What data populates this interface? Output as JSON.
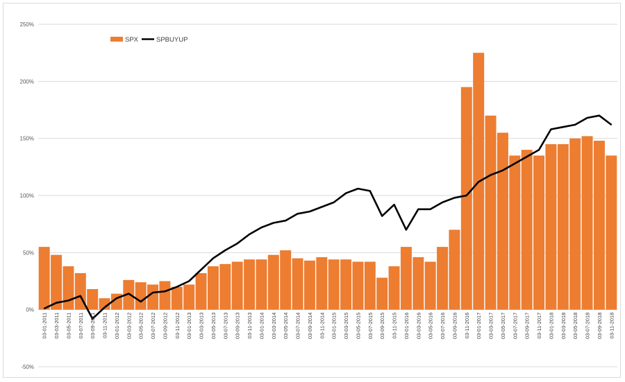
{
  "chart_data": {
    "type": "bar+line",
    "title": "",
    "xlabel": "",
    "ylabel": "",
    "ylim": [
      -0.5,
      2.5
    ],
    "y_tick_step": 0.5,
    "y_tick_labels": [
      "-50%",
      "0%",
      "50%",
      "100%",
      "150%",
      "200%",
      "250%"
    ],
    "grid": "horizontal",
    "legend": {
      "position": "top-left"
    },
    "colors": {
      "SPX": "#ed7d31",
      "SPBUYUP": "#000000"
    },
    "x_tick_labels": [
      "03-01-2011",
      "03-03-2011",
      "03-05-2011",
      "03-07-2011",
      "03-09-2011",
      "03-11-2011",
      "03-01-2012",
      "03-03-2012",
      "03-05-2012",
      "03-07-2012",
      "03-09-2012",
      "03-11-2012",
      "03-01-2013",
      "03-03-2013",
      "03-05-2013",
      "03-07-2013",
      "03-09-2013",
      "03-11-2013",
      "03-01-2014",
      "03-03-2014",
      "03-05-2014",
      "03-07-2014",
      "03-09-2014",
      "03-11-2014",
      "03-01-2015",
      "03-03-2015",
      "03-05-2015",
      "03-07-2015",
      "03-09-2015",
      "03-11-2015",
      "03-01-2016",
      "03-03-2016",
      "03-05-2016",
      "03-07-2016",
      "03-09-2016",
      "03-11-2016",
      "03-01-2017",
      "03-03-2017",
      "03-05-2017",
      "03-07-2017",
      "03-09-2017",
      "03-11-2017",
      "03-01-2018",
      "03-03-2018",
      "03-05-2018",
      "03-07-2018",
      "03-09-2018",
      "03-11-2018"
    ],
    "series": [
      {
        "name": "SPX",
        "type": "bar",
        "values": [
          0.55,
          0.48,
          0.38,
          0.32,
          0.18,
          0.1,
          0.14,
          0.26,
          0.24,
          0.22,
          0.25,
          0.2,
          0.22,
          0.32,
          0.38,
          0.4,
          0.42,
          0.44,
          0.44,
          0.48,
          0.52,
          0.45,
          0.43,
          0.46,
          0.44,
          0.44,
          0.42,
          0.42,
          0.28,
          0.38,
          0.55,
          0.46,
          0.42,
          0.55,
          0.7,
          1.95,
          2.25,
          1.7,
          1.55,
          1.35,
          1.4,
          1.35,
          1.45,
          1.45,
          1.5,
          1.52,
          1.48,
          1.35
        ]
      },
      {
        "name": "SPBUYUP",
        "type": "line",
        "values": [
          0.01,
          0.06,
          0.08,
          0.12,
          -0.08,
          0.02,
          0.1,
          0.14,
          0.07,
          0.15,
          0.16,
          0.2,
          0.25,
          0.35,
          0.45,
          0.52,
          0.58,
          0.66,
          0.72,
          0.76,
          0.78,
          0.84,
          0.86,
          0.9,
          0.94,
          1.02,
          1.06,
          1.04,
          0.82,
          0.92,
          0.7,
          0.88,
          0.88,
          0.94,
          0.98,
          1.0,
          1.12,
          1.18,
          1.22,
          1.28,
          1.34,
          1.4,
          1.58,
          1.6,
          1.62,
          1.68,
          1.7,
          1.62
        ]
      }
    ]
  }
}
